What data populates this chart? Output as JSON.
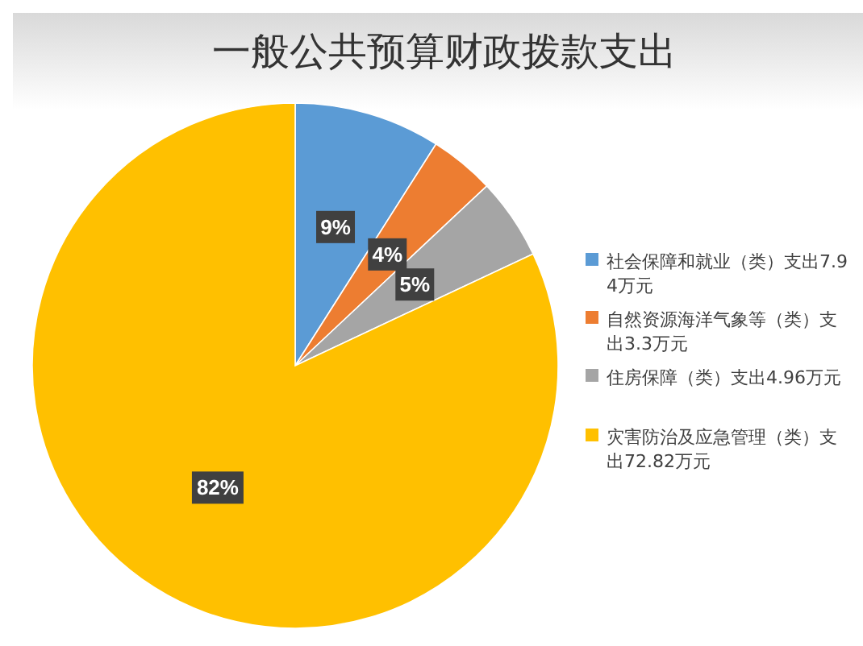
{
  "chart_data": {
    "type": "pie",
    "title": "一般公共预算财政拨款支出",
    "categories": [
      "社会保障和就业（类）支出7.94万元",
      "自然资源海洋气象等（类）支出3.3万元",
      "住房保障（类）支出4.96万元",
      "灾害防治及应急管理（类）支出72.82万元"
    ],
    "values": [
      9,
      4,
      5,
      82
    ],
    "colors": [
      "#5b9bd5",
      "#ed7d31",
      "#a5a5a5",
      "#ffc000"
    ],
    "value_labels": [
      "9%",
      "4%",
      "5%",
      "82%"
    ],
    "legend": "right"
  }
}
